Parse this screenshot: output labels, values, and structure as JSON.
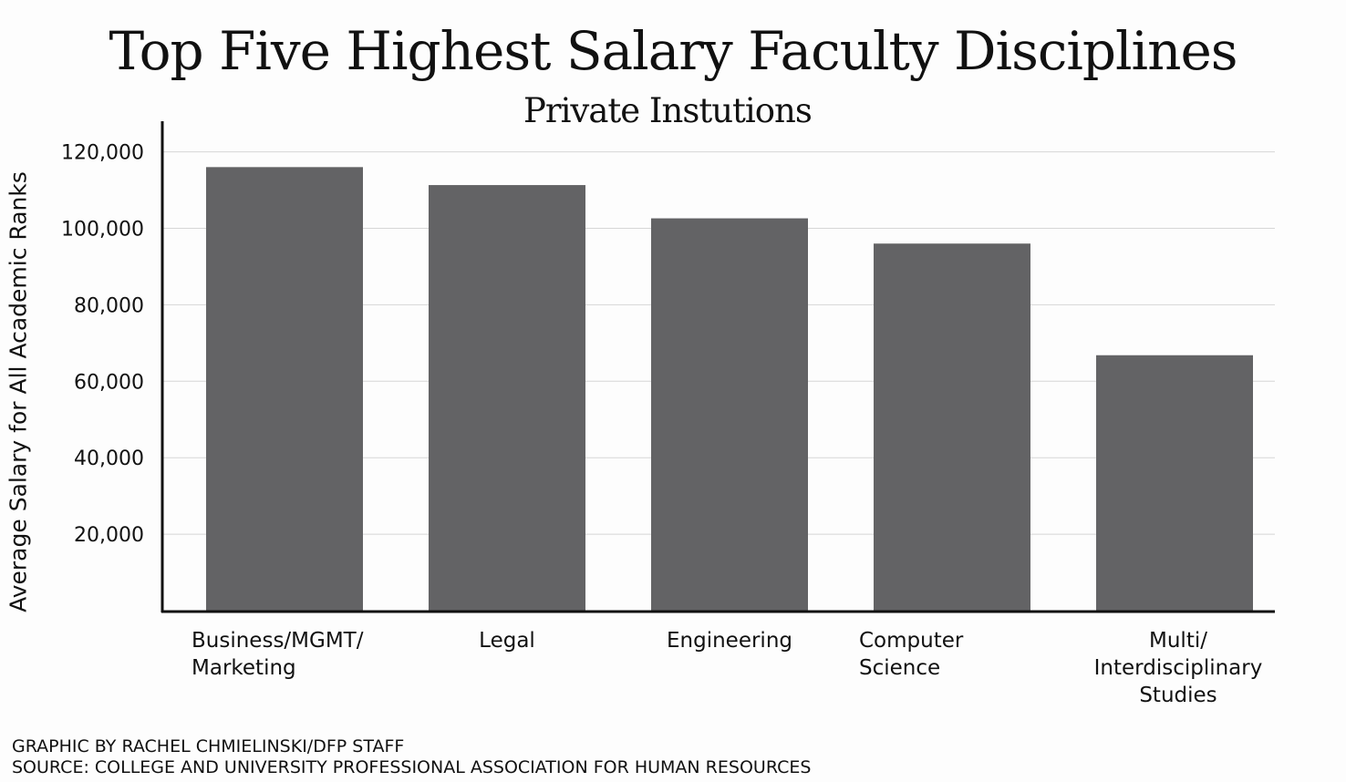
{
  "chart_data": {
    "type": "bar",
    "title": "Top Five Highest Salary Faculty Disciplines",
    "subtitle": "Private Instutions",
    "ylabel": "Average Salary for All Academic Ranks",
    "xlabel": "",
    "categories": [
      [
        "Business/MGMT/",
        "Marketing"
      ],
      [
        "Legal"
      ],
      [
        "Engineering"
      ],
      [
        "Computer",
        "Science"
      ],
      [
        "Multi/",
        "Interdisciplinary",
        "Studies"
      ]
    ],
    "values": [
      116000,
      111300,
      102600,
      96000,
      66800
    ],
    "ylim": [
      0,
      128000
    ],
    "yticks": [
      20000,
      40000,
      60000,
      80000,
      100000,
      120000
    ],
    "ytick_labels": [
      "20,000",
      "40,000",
      "60,000",
      "80,000",
      "100,000",
      "120,000"
    ],
    "grid": true,
    "legend": "none",
    "bar_color": "#636365",
    "grid_color": "#d6d6d6",
    "axis_color": "#111111"
  },
  "credits": {
    "graphic": "GRAPHIC BY RACHEL CHMIELINSKI/DFP STAFF",
    "source": "SOURCE: COLLEGE AND UNIVERSITY PROFESSIONAL ASSOCIATION FOR HUMAN RESOURCES"
  }
}
